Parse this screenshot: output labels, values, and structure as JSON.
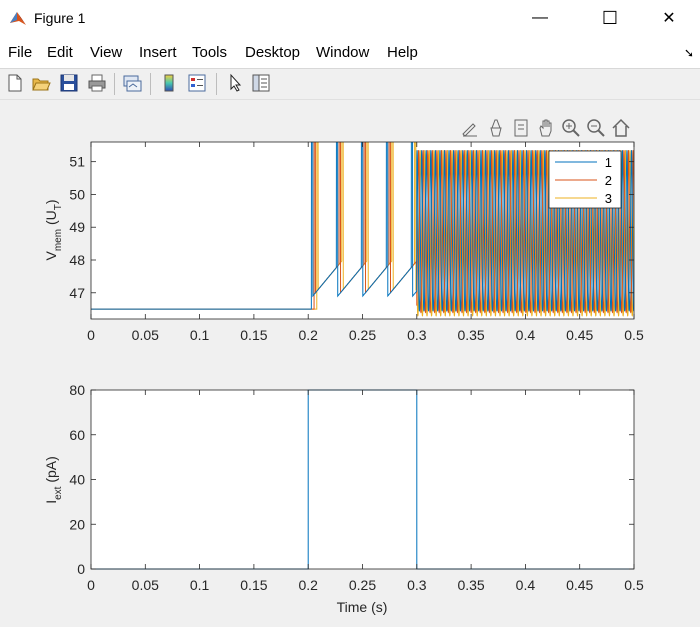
{
  "window": {
    "title": "Figure 1",
    "minimize_glyph": "—",
    "maximize_glyph": "☐",
    "close_glyph": "✕"
  },
  "menu": [
    "File",
    "Edit",
    "View",
    "Insert",
    "Tools",
    "Desktop",
    "Window",
    "Help"
  ],
  "toolbar_icons": [
    "new-figure-icon",
    "open-file-icon",
    "save-icon",
    "print-icon",
    "link-plot-icon",
    "colorbar-icon",
    "legend-icon",
    "pointer-icon",
    "property-inspector-icon"
  ],
  "axes_toolbar_icons": [
    "brush-icon",
    "data-tips-icon",
    "datatip-cursor-icon",
    "pan-icon",
    "zoom-in-icon",
    "zoom-out-icon",
    "home-icon"
  ],
  "colors": {
    "series_1": "#0072bd",
    "series_2": "#d95319",
    "series_3": "#edb120"
  },
  "chart_data": [
    {
      "type": "line",
      "ylabel_main": "V",
      "ylabel_sub": "mem",
      "ylabel_rest": " (U",
      "ylabel_sub2": "T",
      "ylabel_close": ")",
      "xlim": [
        0,
        0.5
      ],
      "ylim": [
        46.2,
        51.6
      ],
      "xticks": [
        "0",
        "0.05",
        "0.1",
        "0.15",
        "0.2",
        "0.25",
        "0.3",
        "0.35",
        "0.4",
        "0.45",
        "0.5"
      ],
      "yticks": [
        "47",
        "48",
        "49",
        "50",
        "51"
      ],
      "legend": [
        "1",
        "2",
        "3"
      ],
      "legend_position": "top-right",
      "series": [
        {
          "name": "1",
          "rest_value": 46.5,
          "transient_spikes": [
            0.203,
            0.226,
            0.249,
            0.272,
            0.295
          ],
          "burst_period": 0.0042,
          "burst_phase": 0.0,
          "burst_min": 46.45,
          "burst_max": 51.35
        },
        {
          "name": "2",
          "rest_value": 46.5,
          "transient_spikes": [
            0.2055,
            0.2285,
            0.2515,
            0.2745
          ],
          "burst_period": 0.0042,
          "burst_phase": 0.0014,
          "burst_min": 46.4,
          "burst_max": 51.35
        },
        {
          "name": "3",
          "rest_value": 46.5,
          "transient_spikes": [
            0.208,
            0.231,
            0.254,
            0.277,
            0.298
          ],
          "burst_period": 0.0042,
          "burst_phase": 0.0028,
          "burst_min": 46.3,
          "burst_max": 51.35
        }
      ],
      "burst_window": [
        0.3,
        0.5
      ]
    },
    {
      "type": "line",
      "ylabel_main": "I",
      "ylabel_sub": "ext",
      "ylabel_rest": " (pA)",
      "xlabel": "Time (s)",
      "xlim": [
        0,
        0.5
      ],
      "ylim": [
        0,
        80
      ],
      "xticks": [
        "0",
        "0.05",
        "0.1",
        "0.15",
        "0.2",
        "0.25",
        "0.3",
        "0.35",
        "0.4",
        "0.45",
        "0.5"
      ],
      "yticks": [
        "0",
        "20",
        "40",
        "60",
        "80"
      ],
      "series": [
        {
          "x": [
            0,
            0.2,
            0.2,
            0.3,
            0.3,
            0.5
          ],
          "y": [
            0,
            0,
            80,
            80,
            0,
            0
          ]
        }
      ]
    }
  ]
}
